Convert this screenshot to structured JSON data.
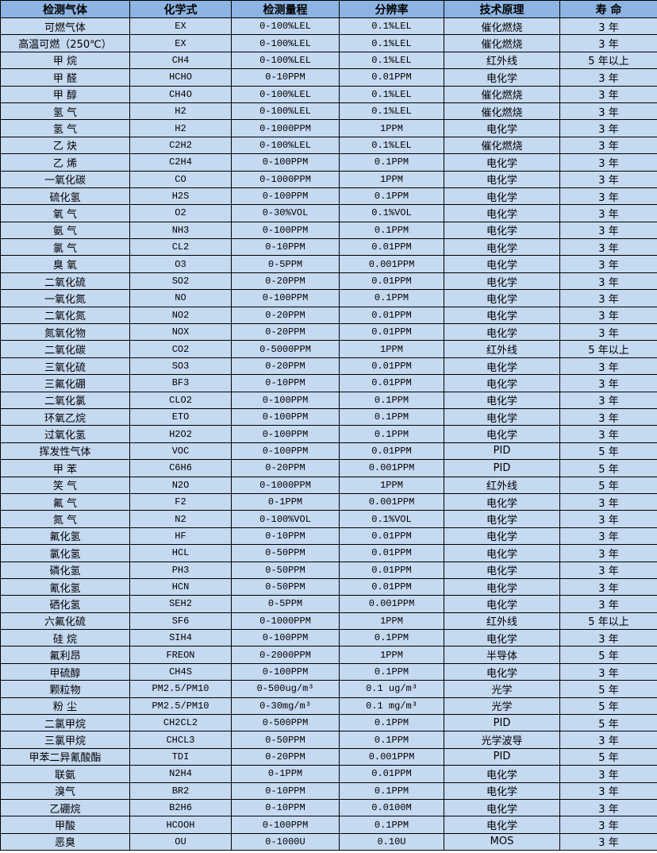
{
  "colors": {
    "header_bg": "#8db4e2",
    "row_bg": "#c5d9f1",
    "border": "#000000"
  },
  "headers": [
    "检测气体",
    "化学式",
    "检测量程",
    "分辨率",
    "技术原理",
    "寿 命"
  ],
  "rows": [
    [
      "可燃气体",
      "EX",
      "0-100%LEL",
      "0.1%LEL",
      "催化燃烧",
      "3 年"
    ],
    [
      "高温可燃（250℃）",
      "EX",
      "0-100%LEL",
      "0.1%LEL",
      "催化燃烧",
      "3 年"
    ],
    [
      "甲 烷",
      "CH4",
      "0-100%LEL",
      "0.1%LEL",
      "红外线",
      "5 年以上"
    ],
    [
      "甲 醛",
      "HCHO",
      "0-10PPM",
      "0.01PPM",
      "电化学",
      "3 年"
    ],
    [
      "甲 醇",
      "CH4O",
      "0-100%LEL",
      "0.1%LEL",
      "催化燃烧",
      "3 年"
    ],
    [
      "氢 气",
      "H2",
      "0-100%LEL",
      "0.1%LEL",
      "催化燃烧",
      "3 年"
    ],
    [
      "氢 气",
      "H2",
      "0-1000PPM",
      "1PPM",
      "电化学",
      "3 年"
    ],
    [
      "乙 炔",
      "C2H2",
      "0-100%LEL",
      "0.1%LEL",
      "催化燃烧",
      "3 年"
    ],
    [
      "乙 烯",
      "C2H4",
      "0-100PPM",
      "0.1PPM",
      "电化学",
      "3 年"
    ],
    [
      "一氧化碳",
      "CO",
      "0-1000PPM",
      "1PPM",
      "电化学",
      "3 年"
    ],
    [
      "硫化氢",
      "H2S",
      "0-100PPM",
      "0.1PPM",
      "电化学",
      "3 年"
    ],
    [
      "氧 气",
      "O2",
      "0-30%VOL",
      "0.1%VOL",
      "电化学",
      "3 年"
    ],
    [
      "氨 气",
      "NH3",
      "0-100PPM",
      "0.1PPM",
      "电化学",
      "3 年"
    ],
    [
      "氯 气",
      "CL2",
      "0-10PPM",
      "0.01PPM",
      "电化学",
      "3 年"
    ],
    [
      "臭 氧",
      "O3",
      "0-5PPM",
      "0.001PPM",
      "电化学",
      "3 年"
    ],
    [
      "二氧化硫",
      "SO2",
      "0-20PPM",
      "0.01PPM",
      "电化学",
      "3 年"
    ],
    [
      "一氧化氮",
      "NO",
      "0-100PPM",
      "0.1PPM",
      "电化学",
      "3 年"
    ],
    [
      "二氧化氮",
      "NO2",
      "0-20PPM",
      "0.01PPM",
      "电化学",
      "3 年"
    ],
    [
      "氮氧化物",
      "NOX",
      "0-20PPM",
      "0.01PPM",
      "电化学",
      "3 年"
    ],
    [
      "二氧化碳",
      "CO2",
      "0-5000PPM",
      "1PPM",
      "红外线",
      "5 年以上"
    ],
    [
      "三氧化硫",
      "SO3",
      "0-20PPM",
      "0.01PPM",
      "电化学",
      "3 年"
    ],
    [
      "三氟化硼",
      "BF3",
      "0-10PPM",
      "0.01PPM",
      "电化学",
      "3 年"
    ],
    [
      "二氧化氯",
      "CLO2",
      "0-100PPM",
      "0.1PPM",
      "电化学",
      "3 年"
    ],
    [
      "环氧乙烷",
      "ETO",
      "0-100PPM",
      "0.1PPM",
      "电化学",
      "3 年"
    ],
    [
      "过氧化氢",
      "H2O2",
      "0-100PPM",
      "0.1PPM",
      "电化学",
      "3 年"
    ],
    [
      "挥发性气体",
      "VOC",
      "0-100PPM",
      "0.01PPM",
      "PID",
      "5 年"
    ],
    [
      "甲 苯",
      "C6H6",
      "0-20PPM",
      "0.001PPM",
      "PID",
      "5 年"
    ],
    [
      "笑 气",
      "N2O",
      "0-1000PPM",
      "1PPM",
      "红外线",
      "5 年"
    ],
    [
      "氟 气",
      "F2",
      "0-1PPM",
      "0.001PPM",
      "电化学",
      "3 年"
    ],
    [
      "氮 气",
      "N2",
      "0-100%VOL",
      "0.1%VOL",
      "电化学",
      "3 年"
    ],
    [
      "氟化氢",
      "HF",
      "0-10PPM",
      "0.01PPM",
      "电化学",
      "3 年"
    ],
    [
      "氯化氢",
      "HCL",
      "0-50PPM",
      "0.01PPM",
      "电化学",
      "3 年"
    ],
    [
      "磷化氢",
      "PH3",
      "0-50PPM",
      "0.01PPM",
      "电化学",
      "3 年"
    ],
    [
      "氰化氢",
      "HCN",
      "0-50PPM",
      "0.01PPM",
      "电化学",
      "3 年"
    ],
    [
      "硒化氢",
      "SEH2",
      "0-5PPM",
      "0.001PPM",
      "电化学",
      "3 年"
    ],
    [
      "六氟化硫",
      "SF6",
      "0-1000PPM",
      "1PPM",
      "红外线",
      "5 年以上"
    ],
    [
      "硅 烷",
      "SIH4",
      "0-100PPM",
      "0.1PPM",
      "电化学",
      "3 年"
    ],
    [
      "氟利昂",
      "FREON",
      "0-2000PPM",
      "1PPM",
      "半导体",
      "5 年"
    ],
    [
      "甲硫醇",
      "CH4S",
      "0-100PPM",
      "0.1PPM",
      "电化学",
      "3 年"
    ],
    [
      "颗粒物",
      "PM2.5/PM10",
      "0-500ug/m³",
      "0.1 ug/m³",
      "光学",
      "5 年"
    ],
    [
      "粉 尘",
      "PM2.5/PM10",
      "0-30mg/m³",
      "0.1 mg/m³",
      "光学",
      "5 年"
    ],
    [
      "二氯甲烷",
      "CH2CL2",
      "0-500PPM",
      "0.1PPM",
      "PID",
      "5 年"
    ],
    [
      "三氯甲烷",
      "CHCL3",
      "0-50PPM",
      "0.1PPM",
      "光学波导",
      "3 年"
    ],
    [
      "甲苯二异氰酸酯",
      "TDI",
      "0-20PPM",
      "0.001PPM",
      "PID",
      "5 年"
    ],
    [
      "联氨",
      "N2H4",
      "0-1PPM",
      "0.01PPM",
      "电化学",
      "3 年"
    ],
    [
      "溴气",
      "BR2",
      "0-10PPM",
      "0.1PPM",
      "电化学",
      "3 年"
    ],
    [
      "乙硼烷",
      "B2H6",
      "0-10PPM",
      "0.0100M",
      "电化学",
      "3 年"
    ],
    [
      "甲酸",
      "HCOOH",
      "0-100PPM",
      "0.1PPM",
      "电化学",
      "3 年"
    ],
    [
      "恶臭",
      "OU",
      "0-1000U",
      "0.10U",
      "MOS",
      "3 年"
    ]
  ]
}
